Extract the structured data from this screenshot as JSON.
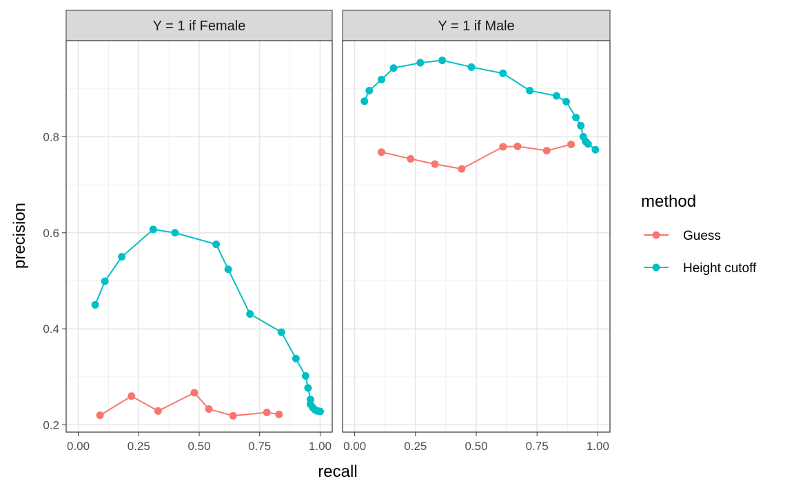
{
  "chart_data": {
    "type": "line",
    "xlabel": "recall",
    "ylabel": "precision",
    "xlim": [
      -0.05,
      1.05
    ],
    "ylim": [
      0.185,
      1.0
    ],
    "x_ticks": [
      "0.00",
      "0.25",
      "0.50",
      "0.75",
      "1.00"
    ],
    "x_tick_values": [
      0,
      0.25,
      0.5,
      0.75,
      1.0
    ],
    "y_ticks": [
      "0.2",
      "0.4",
      "0.6",
      "0.8"
    ],
    "y_tick_values": [
      0.2,
      0.4,
      0.6,
      0.8
    ],
    "grid": true,
    "legend": {
      "title": "method",
      "position": "right",
      "entries": [
        {
          "name": "Guess",
          "color": "#F8766D"
        },
        {
          "name": "Height cutoff",
          "color": "#00BFC4"
        }
      ]
    },
    "facets": [
      {
        "label": "Y = 1 if Female",
        "series": [
          {
            "name": "Guess",
            "color": "#F8766D",
            "points": [
              [
                0.09,
                0.22
              ],
              [
                0.22,
                0.26
              ],
              [
                0.33,
                0.229
              ],
              [
                0.48,
                0.267
              ],
              [
                0.54,
                0.233
              ],
              [
                0.64,
                0.219
              ],
              [
                0.78,
                0.226
              ],
              [
                0.83,
                0.222
              ]
            ]
          },
          {
            "name": "Height cutoff",
            "color": "#00BFC4",
            "points": [
              [
                0.07,
                0.45
              ],
              [
                0.11,
                0.499
              ],
              [
                0.18,
                0.55
              ],
              [
                0.31,
                0.607
              ],
              [
                0.4,
                0.6
              ],
              [
                0.57,
                0.576
              ],
              [
                0.62,
                0.524
              ],
              [
                0.71,
                0.431
              ],
              [
                0.84,
                0.393
              ],
              [
                0.9,
                0.338
              ],
              [
                0.94,
                0.302
              ],
              [
                0.95,
                0.277
              ],
              [
                0.96,
                0.253
              ],
              [
                0.96,
                0.243
              ],
              [
                0.97,
                0.236
              ],
              [
                0.98,
                0.231
              ],
              [
                0.99,
                0.229
              ],
              [
                1.0,
                0.228
              ]
            ]
          }
        ]
      },
      {
        "label": "Y = 1 if Male",
        "series": [
          {
            "name": "Guess",
            "color": "#F8766D",
            "points": [
              [
                0.11,
                0.768
              ],
              [
                0.23,
                0.754
              ],
              [
                0.33,
                0.743
              ],
              [
                0.44,
                0.733
              ],
              [
                0.61,
                0.779
              ],
              [
                0.67,
                0.78
              ],
              [
                0.79,
                0.771
              ],
              [
                0.89,
                0.784
              ]
            ]
          },
          {
            "name": "Height cutoff",
            "color": "#00BFC4",
            "points": [
              [
                0.04,
                0.874
              ],
              [
                0.06,
                0.896
              ],
              [
                0.11,
                0.919
              ],
              [
                0.16,
                0.943
              ],
              [
                0.27,
                0.954
              ],
              [
                0.36,
                0.959
              ],
              [
                0.48,
                0.945
              ],
              [
                0.61,
                0.932
              ],
              [
                0.72,
                0.896
              ],
              [
                0.83,
                0.885
              ],
              [
                0.87,
                0.873
              ],
              [
                0.91,
                0.84
              ],
              [
                0.93,
                0.823
              ],
              [
                0.94,
                0.8
              ],
              [
                0.95,
                0.79
              ],
              [
                0.96,
                0.785
              ],
              [
                0.99,
                0.773
              ]
            ]
          }
        ]
      }
    ]
  }
}
